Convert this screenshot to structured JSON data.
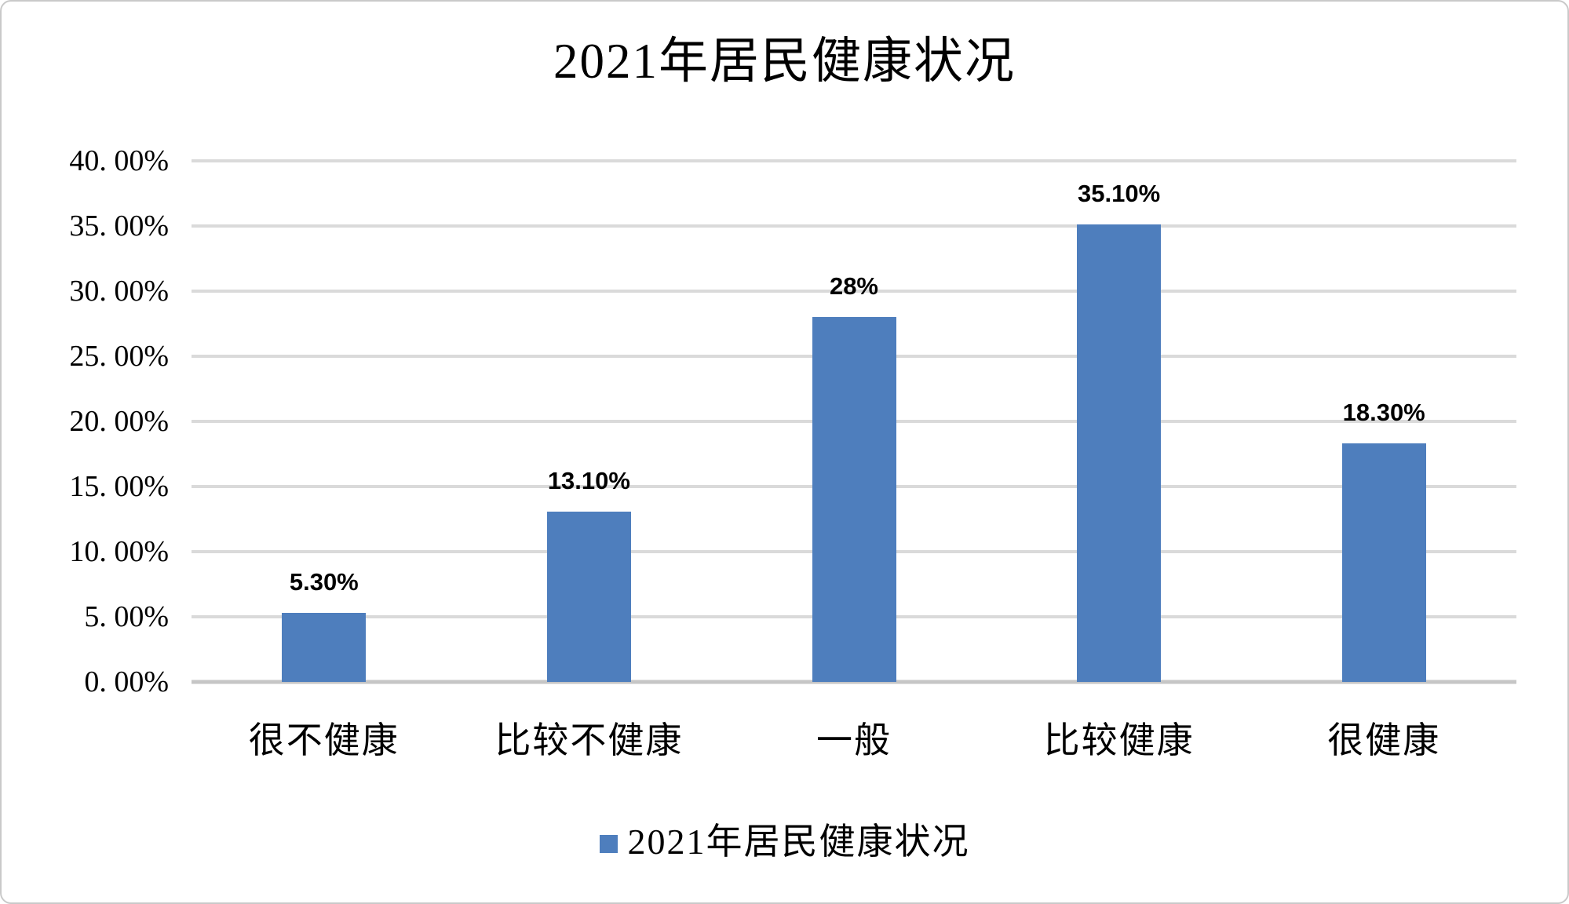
{
  "page": {
    "background": "#ffffff",
    "frame_border_color": "#c9c9c9"
  },
  "chart_data": {
    "type": "bar",
    "title": "2021年居民健康状况",
    "series_name": "2021年居民健康状况",
    "categories": [
      "很不健康",
      "比较不健康",
      "一般",
      "比较健康",
      "很健康"
    ],
    "values": [
      5.3,
      13.1,
      28,
      35.1,
      18.3
    ],
    "data_labels": [
      "5.30%",
      "13.10%",
      "28%",
      "35.10%",
      "18.30%"
    ],
    "xlabel": "",
    "ylabel": "",
    "ylim": [
      0,
      40
    ],
    "yticks": [
      {
        "value": 0,
        "label": "0. 00%"
      },
      {
        "value": 5,
        "label": "5. 00%"
      },
      {
        "value": 10,
        "label": "10. 00%"
      },
      {
        "value": 15,
        "label": "15. 00%"
      },
      {
        "value": 20,
        "label": "20. 00%"
      },
      {
        "value": 25,
        "label": "25. 00%"
      },
      {
        "value": 30,
        "label": "30. 00%"
      },
      {
        "value": 35,
        "label": "35. 00%"
      },
      {
        "value": 40,
        "label": "40. 00%"
      }
    ],
    "grid": true,
    "legend_position": "bottom",
    "bar_color": "#4e7ebd",
    "gridline_color": "#dadada",
    "axis_line_color": "#c6c6c6",
    "text_color": "#000000"
  }
}
